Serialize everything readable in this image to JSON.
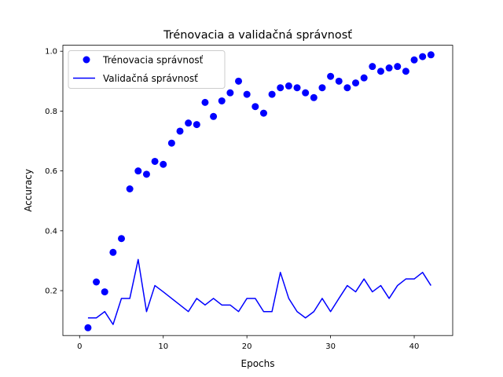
{
  "chart_data": {
    "type": "scatter+line",
    "title": "Trénovacia a validačná správnosť",
    "xlabel": "Epochs",
    "ylabel": "Accuracy",
    "xlim": [
      -2.0,
      44.6
    ],
    "ylim": [
      0.05,
      1.02
    ],
    "x_ticks": [
      0,
      10,
      20,
      30,
      40
    ],
    "y_ticks": [
      0.2,
      0.4,
      0.6,
      0.8,
      1.0
    ],
    "grid": false,
    "legend_position": "upper-left",
    "series": [
      {
        "name": "Trénovacia správnosť",
        "style": "points",
        "color": "#0000ff",
        "x": [
          1,
          2,
          3,
          4,
          5,
          6,
          7,
          8,
          9,
          10,
          11,
          12,
          13,
          14,
          15,
          16,
          17,
          18,
          19,
          20,
          21,
          22,
          23,
          24,
          25,
          26,
          27,
          28,
          29,
          30,
          31,
          32,
          33,
          34,
          35,
          36,
          37,
          38,
          39,
          40,
          41,
          42
        ],
        "y": [
          0.076,
          0.229,
          0.196,
          0.328,
          0.374,
          0.54,
          0.6,
          0.589,
          0.632,
          0.622,
          0.693,
          0.733,
          0.76,
          0.755,
          0.829,
          0.782,
          0.834,
          0.861,
          0.9,
          0.856,
          0.815,
          0.793,
          0.856,
          0.878,
          0.884,
          0.878,
          0.861,
          0.845,
          0.878,
          0.916,
          0.9,
          0.878,
          0.894,
          0.911,
          0.949,
          0.933,
          0.944,
          0.949,
          0.933,
          0.971,
          0.982,
          0.988
        ]
      },
      {
        "name": "Validačná správnosť",
        "style": "line",
        "color": "#0000ff",
        "x": [
          1,
          2,
          3,
          4,
          5,
          6,
          7,
          8,
          9,
          10,
          11,
          12,
          13,
          14,
          15,
          16,
          17,
          18,
          19,
          20,
          21,
          22,
          23,
          24,
          25,
          26,
          27,
          28,
          29,
          30,
          31,
          32,
          33,
          34,
          35,
          36,
          37,
          38,
          39,
          40,
          41,
          42
        ],
        "y": [
          0.109,
          0.109,
          0.13,
          0.087,
          0.174,
          0.174,
          0.304,
          0.13,
          0.217,
          0.196,
          0.174,
          0.152,
          0.13,
          0.174,
          0.152,
          0.174,
          0.152,
          0.152,
          0.13,
          0.174,
          0.174,
          0.13,
          0.13,
          0.261,
          0.174,
          0.13,
          0.109,
          0.13,
          0.174,
          0.13,
          0.174,
          0.217,
          0.196,
          0.239,
          0.196,
          0.217,
          0.174,
          0.217,
          0.239,
          0.239,
          0.261,
          0.217
        ]
      }
    ]
  }
}
